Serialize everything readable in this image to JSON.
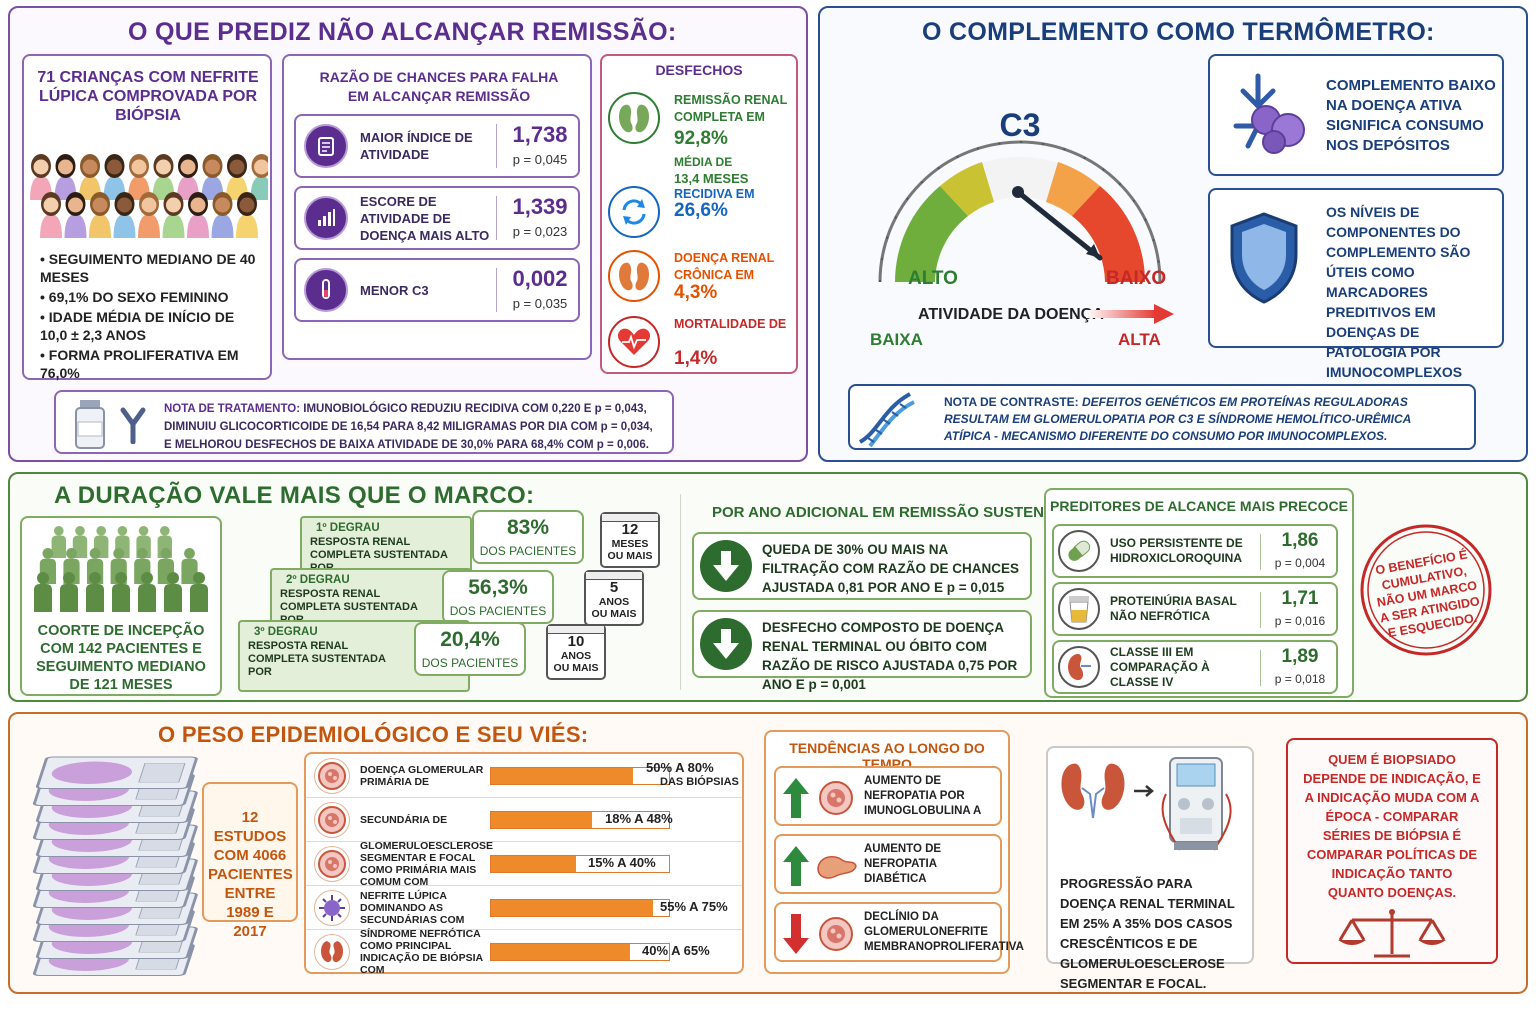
{
  "remission": {
    "title": "O QUE PREDIZ NÃO ALCANÇAR REMISSÃO:",
    "cohort_title": "71 CRIANÇAS COM NEFRITE LÚPICA COMPROVADA POR BIÓPSIA",
    "cohort_facts": [
      "SEGUIMENTO MEDIANO DE 40 MESES",
      "69,1% DO SEXO FEMININO",
      "IDADE MÉDIA DE INÍCIO DE 10,0 ± 2,3 ANOS",
      "FORMA PROLIFERATIVA EM 76,0%"
    ],
    "or_title": "RAZÃO DE CHANCES PARA FALHA EM ALCANÇAR REMISSÃO",
    "or_items": [
      {
        "label": "MAIOR ÍNDICE DE ATIVIDADE",
        "value": "1,738",
        "p": "p = 0,045",
        "icon": "clipboard-icon"
      },
      {
        "label": "ESCORE DE ATIVIDADE DE DOENÇA MAIS ALTO",
        "value": "1,339",
        "p": "p = 0,023",
        "icon": "bar-chart-icon"
      },
      {
        "label": "MENOR C3",
        "value": "0,002",
        "p": "p = 0,035",
        "icon": "test-tube-icon"
      }
    ],
    "outcomes_title": "DESFECHOS",
    "outcomes": [
      {
        "label": "REMISSÃO RENAL COMPLETA EM",
        "value": "92,8%",
        "extra1": "MÉDIA DE",
        "extra2": "13,4 MESES",
        "color": "#2e7d32",
        "icon": "kidney-icon"
      },
      {
        "label": "RECIDIVA EM",
        "value": "26,6%",
        "color": "#1565c0",
        "icon": "refresh-icon"
      },
      {
        "label": "DOENÇA RENAL CRÔNICA EM",
        "value": "4,3%",
        "color": "#e65100",
        "icon": "kidney-icon"
      },
      {
        "label": "MORTALIDADE DE",
        "value": "1,4%",
        "color": "#c62828",
        "icon": "heart-icon"
      }
    ],
    "note_label": "NOTA DE TRATAMENTO:",
    "note_lines": [
      "IMUNOBIOLÓGICO REDUZIU RECIDIVA COM 0,220 E p = 0,043,",
      "DIMINUIU GLICOCORTICOIDE DE 16,54 PARA 8,42 MILIGRAMAS POR DIA COM p = 0,034,",
      "E MELHOROU DESFECHOS DE BAIXA ATIVIDADE DE 30,0% PARA 68,4% COM p = 0,006."
    ]
  },
  "complement": {
    "title": "O COMPLEMENTO COMO TERMÔMETRO:",
    "gauge_label": "C3",
    "gauge_left": "ALTO",
    "gauge_right": "BAIXO",
    "activity_label": "ATIVIDADE DA DOENÇA",
    "activity_low": "BAIXA",
    "activity_high": "ALTA",
    "info1": "COMPLEMENTO BAIXO NA DOENÇA ATIVA SIGNIFICA CONSUMO NOS DEPÓSITOS",
    "info2": "OS NÍVEIS DE COMPONENTES DO COMPLEMENTO SÃO ÚTEIS COMO MARCADORES PREDITIVOS EM DOENÇAS DE PATOLOGIA POR IMUNOCOMPLEXOS",
    "contrast_label": "NOTA DE CONTRASTE:",
    "contrast_lines": [
      "DEFEITOS GENÉTICOS EM PROTEÍNAS REGULADORAS",
      "RESULTAM EM GLOMERULOPATIA POR C3 E SÍNDROME HEMOLÍTICO-URÊMICA",
      "ATÍPICA - MECANISMO DIFERENTE DO CONSUMO POR IMUNOCOMPLEXOS."
    ]
  },
  "duration": {
    "title": "A DURAÇÃO VALE MAIS QUE O MARCO:",
    "cohort": "COORTE DE INCEPÇÃO COM 142 PACIENTES E SEGUIMENTO MEDIANO DE 121 MESES",
    "steps": [
      {
        "degree": "1º DEGRAU",
        "text": "RESPOSTA RENAL COMPLETA SUSTENTADA POR",
        "value": "83%",
        "sub": "DOS PACIENTES",
        "n": "12",
        "unit1": "MESES",
        "unit2": "OU MAIS"
      },
      {
        "degree": "2º DEGRAU",
        "text": "RESPOSTA RENAL COMPLETA SUSTENTADA POR",
        "value": "56,3%",
        "sub": "DOS PACIENTES",
        "n": "5",
        "unit1": "ANOS",
        "unit2": "OU MAIS"
      },
      {
        "degree": "3º DEGRAU",
        "text": "RESPOSTA RENAL COMPLETA SUSTENTADA POR",
        "value": "20,4%",
        "sub": "DOS PACIENTES",
        "n": "10",
        "unit1": "ANOS",
        "unit2": "OU MAIS"
      }
    ],
    "per_year_title": "POR ANO ADICIONAL EM REMISSÃO SUSTENTADA",
    "per_year": [
      "QUEDA DE 30% OU MAIS NA FILTRAÇÃO COM RAZÃO DE CHANCES AJUSTADA 0,81 POR ANO E p = 0,015",
      "DESFECHO COMPOSTO DE DOENÇA RENAL TERMINAL OU ÓBITO COM RAZÃO DE RISCO AJUSTADA 0,75 POR ANO E p = 0,001"
    ],
    "predictors_title": "PREDITORES DE ALCANCE MAIS PRECOCE",
    "predictors": [
      {
        "label": "USO PERSISTENTE DE HIDROXICLOROQUINA",
        "value": "1,86",
        "p": "p = 0,004",
        "icon": "pill-icon"
      },
      {
        "label": "PROTEINÚRIA BASAL NÃO NEFRÓTICA",
        "value": "1,71",
        "p": "p = 0,016",
        "icon": "urine-cup-icon"
      },
      {
        "label": "CLASSE III EM COMPARAÇÃO À CLASSE IV",
        "value": "1,89",
        "p": "p = 0,018",
        "icon": "kidney-icon"
      }
    ],
    "stamp": "O BENEFÍCIO É CUMULATIVO, NÃO UM MARCO A SER ATINGIDO E ESQUECIDO."
  },
  "epidemiology": {
    "title": "O PESO EPIDEMIOLÓGICO E SEU VIÉS:",
    "studies": "12 ESTUDOS COM 4066 PACIENTES ENTRE 1989 E 2017",
    "bars": [
      {
        "label": "DOENÇA GLOMERULAR PRIMÁRIA DE",
        "range": "50% A 80%",
        "range2": "DAS BIÓPSIAS",
        "fill": 0.8
      },
      {
        "label": "SECUNDÁRIA DE",
        "range": "18% A 48%",
        "range2": "",
        "fill": 0.57
      },
      {
        "label": "GLOMERULOESCLEROSE SEGMENTAR E FOCAL COMO PRIMÁRIA MAIS COMUM COM",
        "range": "15% A 40%",
        "range2": "",
        "fill": 0.48
      },
      {
        "label": "NEFRITE LÚPICA DOMINANDO AS SECUNDÁRIAS COM",
        "range": "55% A 75%",
        "range2": "",
        "fill": 0.91
      },
      {
        "label": "SÍNDROME NEFRÓTICA COMO PRINCIPAL INDICAÇÃO DE BIÓPSIA COM",
        "range": "40% A 65%",
        "range2": "",
        "fill": 0.78
      }
    ],
    "trends_title": "TENDÊNCIAS AO LONGO DO TEMPO",
    "trends": [
      {
        "label": "AUMENTO DE NEFROPATIA POR IMUNOGLOBULINA A",
        "dir": "up"
      },
      {
        "label": "AUMENTO DE NEFROPATIA DIABÉTICA",
        "dir": "up"
      },
      {
        "label": "DECLÍNIO DA GLOMERULONEFRITE MEMBRANOPROLIFERATIVA",
        "dir": "down"
      }
    ],
    "progression": "PROGRESSÃO PARA DOENÇA RENAL TERMINAL EM 25% A 35% DOS CASOS CRESCÊNTICOS E DE GLOMERULOESCLEROSE SEGMENTAR E FOCAL.",
    "bias": "QUEM É BIOPSIADO DEPENDE DE INDICAÇÃO, E A INDICAÇÃO MUDA COM A ÉPOCA - COMPARAR SÉRIES DE BIÓPSIA É COMPARAR POLÍTICAS DE INDICAÇÃO TANTO QUANTO DOENÇAS."
  },
  "colors": {
    "purple": "#5b2d8e",
    "navy": "#1a3e7a",
    "green": "#2e6b2e",
    "orange": "#c2560f",
    "red": "#c62828"
  }
}
